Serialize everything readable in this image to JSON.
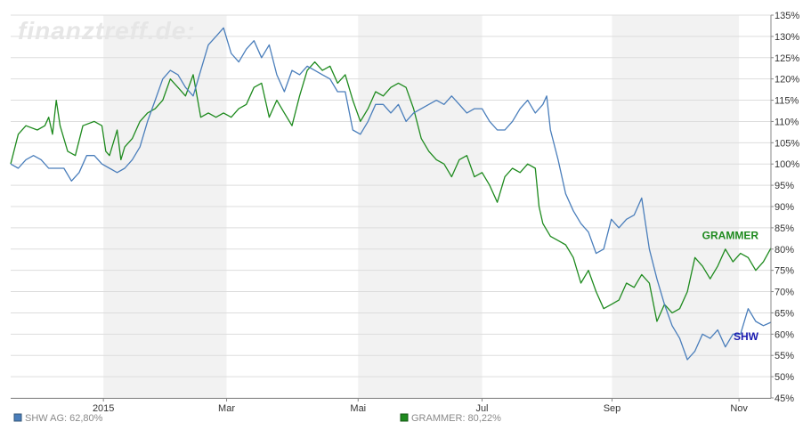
{
  "watermark": "finanztreff.de:",
  "legend": {
    "shw": "SHW AG: 62,80%",
    "grammer": "GRAMMER: 80,22%"
  },
  "chart_data": {
    "type": "line",
    "title": "",
    "xlabel": "",
    "ylabel": "",
    "ylim": [
      45,
      135
    ],
    "y_ticks": [
      "135%",
      "130%",
      "125%",
      "120%",
      "115%",
      "110%",
      "105%",
      "100%",
      "95%",
      "90%",
      "85%",
      "80%",
      "75%",
      "70%",
      "65%",
      "60%",
      "55%",
      "50%",
      "45%"
    ],
    "x_ticks": [
      {
        "label": "2015",
        "pos": 0.122
      },
      {
        "label": "Mar",
        "pos": 0.284
      },
      {
        "label": "Mai",
        "pos": 0.457
      },
      {
        "label": "Jul",
        "pos": 0.62
      },
      {
        "label": "Sep",
        "pos": 0.791
      },
      {
        "label": "Nov",
        "pos": 0.958
      }
    ],
    "shaded_bands": [
      [
        0.122,
        0.284
      ],
      [
        0.457,
        0.62
      ],
      [
        0.791,
        0.958
      ]
    ],
    "grid": true,
    "x_range": [
      0,
      1
    ],
    "series": [
      {
        "name": "GRAMMER",
        "color": "#1e8a1e",
        "label_color": "#1e8a1e",
        "points": [
          [
            0,
            100
          ],
          [
            0.01,
            107
          ],
          [
            0.02,
            109
          ],
          [
            0.035,
            108
          ],
          [
            0.045,
            109
          ],
          [
            0.05,
            111
          ],
          [
            0.055,
            107
          ],
          [
            0.06,
            115
          ],
          [
            0.065,
            109
          ],
          [
            0.075,
            103
          ],
          [
            0.085,
            102
          ],
          [
            0.095,
            109
          ],
          [
            0.11,
            110
          ],
          [
            0.12,
            109
          ],
          [
            0.125,
            103
          ],
          [
            0.13,
            102
          ],
          [
            0.14,
            108
          ],
          [
            0.145,
            101
          ],
          [
            0.15,
            104
          ],
          [
            0.16,
            106
          ],
          [
            0.17,
            110
          ],
          [
            0.18,
            112
          ],
          [
            0.19,
            113
          ],
          [
            0.2,
            115
          ],
          [
            0.21,
            120
          ],
          [
            0.22,
            118
          ],
          [
            0.23,
            116
          ],
          [
            0.24,
            121
          ],
          [
            0.25,
            111
          ],
          [
            0.26,
            112
          ],
          [
            0.27,
            111
          ],
          [
            0.28,
            112
          ],
          [
            0.29,
            111
          ],
          [
            0.3,
            113
          ],
          [
            0.31,
            114
          ],
          [
            0.32,
            118
          ],
          [
            0.33,
            119
          ],
          [
            0.34,
            111
          ],
          [
            0.35,
            115
          ],
          [
            0.36,
            112
          ],
          [
            0.37,
            109
          ],
          [
            0.38,
            116
          ],
          [
            0.39,
            122
          ],
          [
            0.4,
            124
          ],
          [
            0.41,
            122
          ],
          [
            0.42,
            123
          ],
          [
            0.43,
            119
          ],
          [
            0.44,
            121
          ],
          [
            0.45,
            115
          ],
          [
            0.46,
            110
          ],
          [
            0.47,
            113
          ],
          [
            0.48,
            117
          ],
          [
            0.49,
            116
          ],
          [
            0.5,
            118
          ],
          [
            0.51,
            119
          ],
          [
            0.52,
            118
          ],
          [
            0.53,
            113
          ],
          [
            0.54,
            106
          ],
          [
            0.55,
            103
          ],
          [
            0.56,
            101
          ],
          [
            0.57,
            100
          ],
          [
            0.58,
            97
          ],
          [
            0.59,
            101
          ],
          [
            0.6,
            102
          ],
          [
            0.61,
            97
          ],
          [
            0.62,
            98
          ],
          [
            0.63,
            95
          ],
          [
            0.64,
            91
          ],
          [
            0.65,
            97
          ],
          [
            0.66,
            99
          ],
          [
            0.67,
            98
          ],
          [
            0.68,
            100
          ],
          [
            0.69,
            99
          ],
          [
            0.695,
            90
          ],
          [
            0.7,
            86
          ],
          [
            0.71,
            83
          ],
          [
            0.72,
            82
          ],
          [
            0.73,
            81
          ],
          [
            0.74,
            78
          ],
          [
            0.75,
            72
          ],
          [
            0.76,
            75
          ],
          [
            0.77,
            70
          ],
          [
            0.78,
            66
          ],
          [
            0.79,
            67
          ],
          [
            0.8,
            68
          ],
          [
            0.81,
            72
          ],
          [
            0.82,
            71
          ],
          [
            0.83,
            74
          ],
          [
            0.84,
            72
          ],
          [
            0.85,
            63
          ],
          [
            0.86,
            67
          ],
          [
            0.87,
            65
          ],
          [
            0.88,
            66
          ],
          [
            0.89,
            70
          ],
          [
            0.9,
            78
          ],
          [
            0.91,
            76
          ],
          [
            0.92,
            73
          ],
          [
            0.93,
            76
          ],
          [
            0.94,
            80
          ],
          [
            0.95,
            77
          ],
          [
            0.96,
            79
          ],
          [
            0.97,
            78
          ],
          [
            0.98,
            75
          ],
          [
            0.99,
            77
          ],
          [
            1.0,
            80.22
          ]
        ]
      },
      {
        "name": "SHW",
        "color": "#4a7ebb",
        "label_color": "#1c1cb0",
        "points": [
          [
            0,
            100
          ],
          [
            0.01,
            99
          ],
          [
            0.02,
            101
          ],
          [
            0.03,
            102
          ],
          [
            0.04,
            101
          ],
          [
            0.05,
            99
          ],
          [
            0.06,
            99
          ],
          [
            0.07,
            99
          ],
          [
            0.08,
            96
          ],
          [
            0.09,
            98
          ],
          [
            0.1,
            102
          ],
          [
            0.11,
            102
          ],
          [
            0.12,
            100
          ],
          [
            0.13,
            99
          ],
          [
            0.14,
            98
          ],
          [
            0.15,
            99
          ],
          [
            0.16,
            101
          ],
          [
            0.17,
            104
          ],
          [
            0.18,
            110
          ],
          [
            0.19,
            115
          ],
          [
            0.2,
            120
          ],
          [
            0.21,
            122
          ],
          [
            0.22,
            121
          ],
          [
            0.23,
            118
          ],
          [
            0.24,
            116
          ],
          [
            0.25,
            122
          ],
          [
            0.26,
            128
          ],
          [
            0.27,
            130
          ],
          [
            0.28,
            132
          ],
          [
            0.29,
            126
          ],
          [
            0.3,
            124
          ],
          [
            0.31,
            127
          ],
          [
            0.32,
            129
          ],
          [
            0.33,
            125
          ],
          [
            0.34,
            128
          ],
          [
            0.35,
            121
          ],
          [
            0.36,
            117
          ],
          [
            0.37,
            122
          ],
          [
            0.38,
            121
          ],
          [
            0.39,
            123
          ],
          [
            0.4,
            122
          ],
          [
            0.41,
            121
          ],
          [
            0.42,
            120
          ],
          [
            0.43,
            117
          ],
          [
            0.44,
            117
          ],
          [
            0.45,
            108
          ],
          [
            0.46,
            107
          ],
          [
            0.47,
            110
          ],
          [
            0.48,
            114
          ],
          [
            0.49,
            114
          ],
          [
            0.5,
            112
          ],
          [
            0.51,
            114
          ],
          [
            0.52,
            110
          ],
          [
            0.53,
            112
          ],
          [
            0.54,
            113
          ],
          [
            0.55,
            114
          ],
          [
            0.56,
            115
          ],
          [
            0.57,
            114
          ],
          [
            0.58,
            116
          ],
          [
            0.59,
            114
          ],
          [
            0.6,
            112
          ],
          [
            0.61,
            113
          ],
          [
            0.62,
            113
          ],
          [
            0.63,
            110
          ],
          [
            0.64,
            108
          ],
          [
            0.65,
            108
          ],
          [
            0.66,
            110
          ],
          [
            0.67,
            113
          ],
          [
            0.68,
            115
          ],
          [
            0.69,
            112
          ],
          [
            0.7,
            114
          ],
          [
            0.705,
            116
          ],
          [
            0.71,
            108
          ],
          [
            0.72,
            101
          ],
          [
            0.73,
            93
          ],
          [
            0.74,
            89
          ],
          [
            0.75,
            86
          ],
          [
            0.76,
            84
          ],
          [
            0.77,
            79
          ],
          [
            0.78,
            80
          ],
          [
            0.79,
            87
          ],
          [
            0.8,
            85
          ],
          [
            0.81,
            87
          ],
          [
            0.82,
            88
          ],
          [
            0.83,
            92
          ],
          [
            0.84,
            80
          ],
          [
            0.85,
            73
          ],
          [
            0.86,
            67
          ],
          [
            0.87,
            62
          ],
          [
            0.88,
            59
          ],
          [
            0.89,
            54
          ],
          [
            0.9,
            56
          ],
          [
            0.91,
            60
          ],
          [
            0.92,
            59
          ],
          [
            0.93,
            61
          ],
          [
            0.94,
            57
          ],
          [
            0.95,
            60
          ],
          [
            0.96,
            60
          ],
          [
            0.97,
            66
          ],
          [
            0.98,
            63
          ],
          [
            0.99,
            62
          ],
          [
            1.0,
            62.8
          ]
        ]
      }
    ]
  }
}
